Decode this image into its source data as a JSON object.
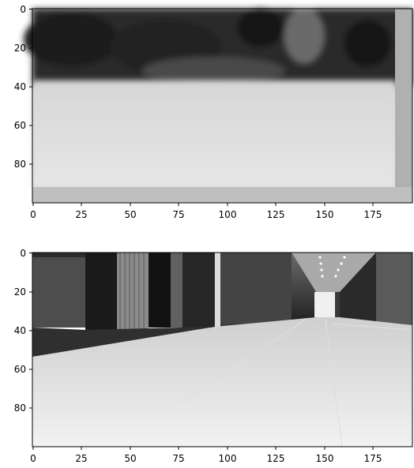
{
  "panels": [
    {
      "name": "top-image",
      "description_colors": {
        "dark": "#2a2a2a",
        "mid": "#9a9a9a",
        "light": "#dedede"
      },
      "x_ticks": [
        "0",
        "25",
        "50",
        "75",
        "100",
        "125",
        "150",
        "175"
      ],
      "y_ticks": [
        "0",
        "20",
        "40",
        "60",
        "80"
      ]
    },
    {
      "name": "bottom-image",
      "description_colors": {
        "dark": "#1e1e1e",
        "mid": "#7a7a7a",
        "light": "#e6e6e6"
      },
      "x_ticks": [
        "0",
        "25",
        "50",
        "75",
        "100",
        "125",
        "150",
        "175"
      ],
      "y_ticks": [
        "0",
        "20",
        "40",
        "60",
        "80"
      ]
    }
  ]
}
